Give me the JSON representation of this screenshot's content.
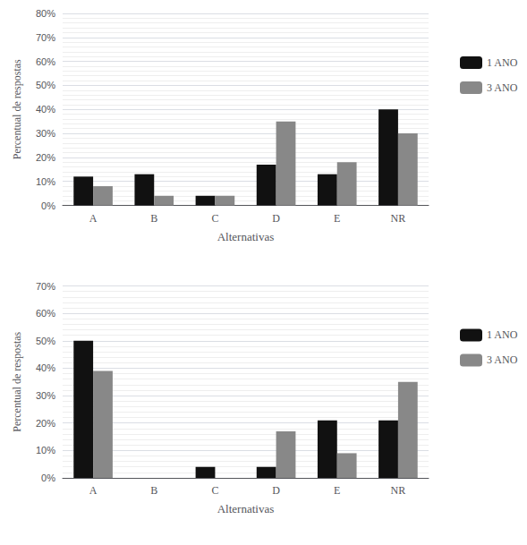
{
  "chart_data": [
    {
      "type": "bar",
      "categories": [
        "A",
        "B",
        "C",
        "D",
        "E",
        "NR"
      ],
      "series": [
        {
          "name": "1 ANO",
          "color": "#111111",
          "values": [
            12,
            13,
            4,
            17,
            13,
            40
          ]
        },
        {
          "name": "3 ANO",
          "color": "#888888",
          "values": [
            8,
            4,
            4,
            35,
            18,
            30
          ]
        }
      ],
      "xlabel": "Alternativas",
      "ylabel": "Percentual de respostas",
      "ylim": [
        0,
        80
      ],
      "yticks": [
        {
          "value": 0,
          "label": "0%"
        },
        {
          "value": 10,
          "label": "10%"
        },
        {
          "value": 20,
          "label": "20%"
        },
        {
          "value": 30,
          "label": "30%"
        },
        {
          "value": 40,
          "label": "40%"
        },
        {
          "value": 50,
          "label": "50%"
        },
        {
          "value": 60,
          "label": "60%"
        },
        {
          "value": 70,
          "label": "70%"
        },
        {
          "value": 80,
          "label": "80%"
        }
      ],
      "grid": true,
      "legend": "right"
    },
    {
      "type": "bar",
      "categories": [
        "A",
        "B",
        "C",
        "D",
        "E",
        "NR"
      ],
      "series": [
        {
          "name": "1 ANO",
          "color": "#111111",
          "values": [
            50,
            0,
            4,
            4,
            21,
            21
          ]
        },
        {
          "name": "3 ANO",
          "color": "#888888",
          "values": [
            39,
            0,
            0,
            17,
            9,
            35
          ]
        }
      ],
      "xlabel": "Alternativas",
      "ylabel": "Percentual de respostas",
      "ylim": [
        0,
        70
      ],
      "yticks": [
        {
          "value": 0,
          "label": "0%"
        },
        {
          "value": 10,
          "label": "10%"
        },
        {
          "value": 20,
          "label": "20%"
        },
        {
          "value": 30,
          "label": "30%"
        },
        {
          "value": 40,
          "label": "40%"
        },
        {
          "value": 50,
          "label": "50%"
        },
        {
          "value": 60,
          "label": "60%"
        },
        {
          "value": 70,
          "label": "70%"
        }
      ],
      "grid": true,
      "legend": "right"
    }
  ]
}
